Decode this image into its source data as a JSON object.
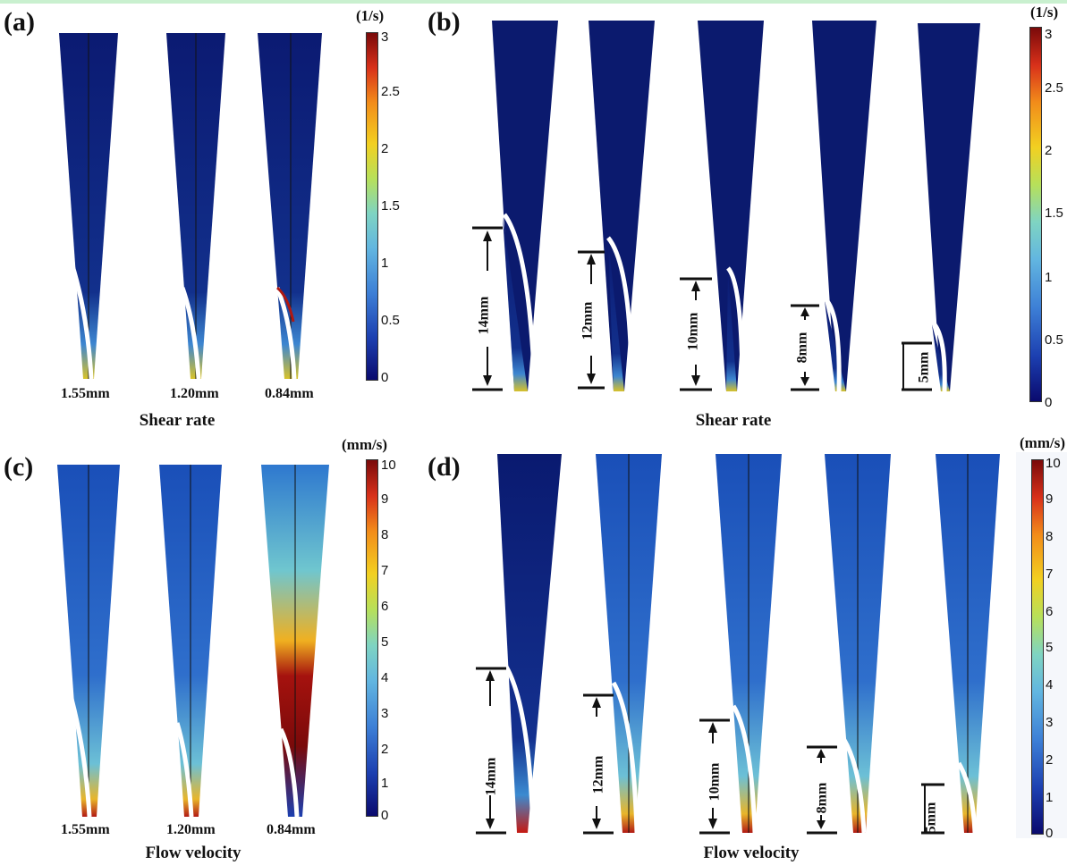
{
  "panels": {
    "a": {
      "letter": "(a)",
      "caption": "Shear rate",
      "unit": "(1/s)",
      "diameters": [
        "1.55mm",
        "1.20mm",
        "0.84mm"
      ],
      "ticks": [
        "3",
        "2.5",
        "2",
        "1.5",
        "1",
        "0.5",
        "0"
      ]
    },
    "b": {
      "letter": "(b)",
      "caption": "Shear rate",
      "unit": "(1/s)",
      "lengths": [
        "14mm",
        "12mm",
        "10mm",
        "8mm",
        "5mm"
      ],
      "ticks": [
        "3",
        "2.5",
        "2",
        "1.5",
        "1",
        "0.5",
        "0"
      ]
    },
    "c": {
      "letter": "(c)",
      "caption": "Flow velocity",
      "unit": "(mm/s)",
      "diameters": [
        "1.55mm",
        "1.20mm",
        "0.84mm"
      ],
      "ticks": [
        "10",
        "9",
        "8",
        "7",
        "6",
        "5",
        "4",
        "3",
        "2",
        "1",
        "0"
      ]
    },
    "d": {
      "letter": "(d)",
      "caption": "Flow velocity",
      "unit": "(mm/s)",
      "lengths": [
        "14mm",
        "12mm",
        "10mm",
        "8mm",
        "5mm"
      ],
      "ticks": [
        "10",
        "9",
        "8",
        "7",
        "6",
        "5",
        "4",
        "3",
        "2",
        "1",
        "0"
      ]
    }
  },
  "colors": {
    "low": "#0a1a6e",
    "mid": "#3d7fd6",
    "high": "#7a0a0a",
    "frame": "#c9f0cf"
  }
}
